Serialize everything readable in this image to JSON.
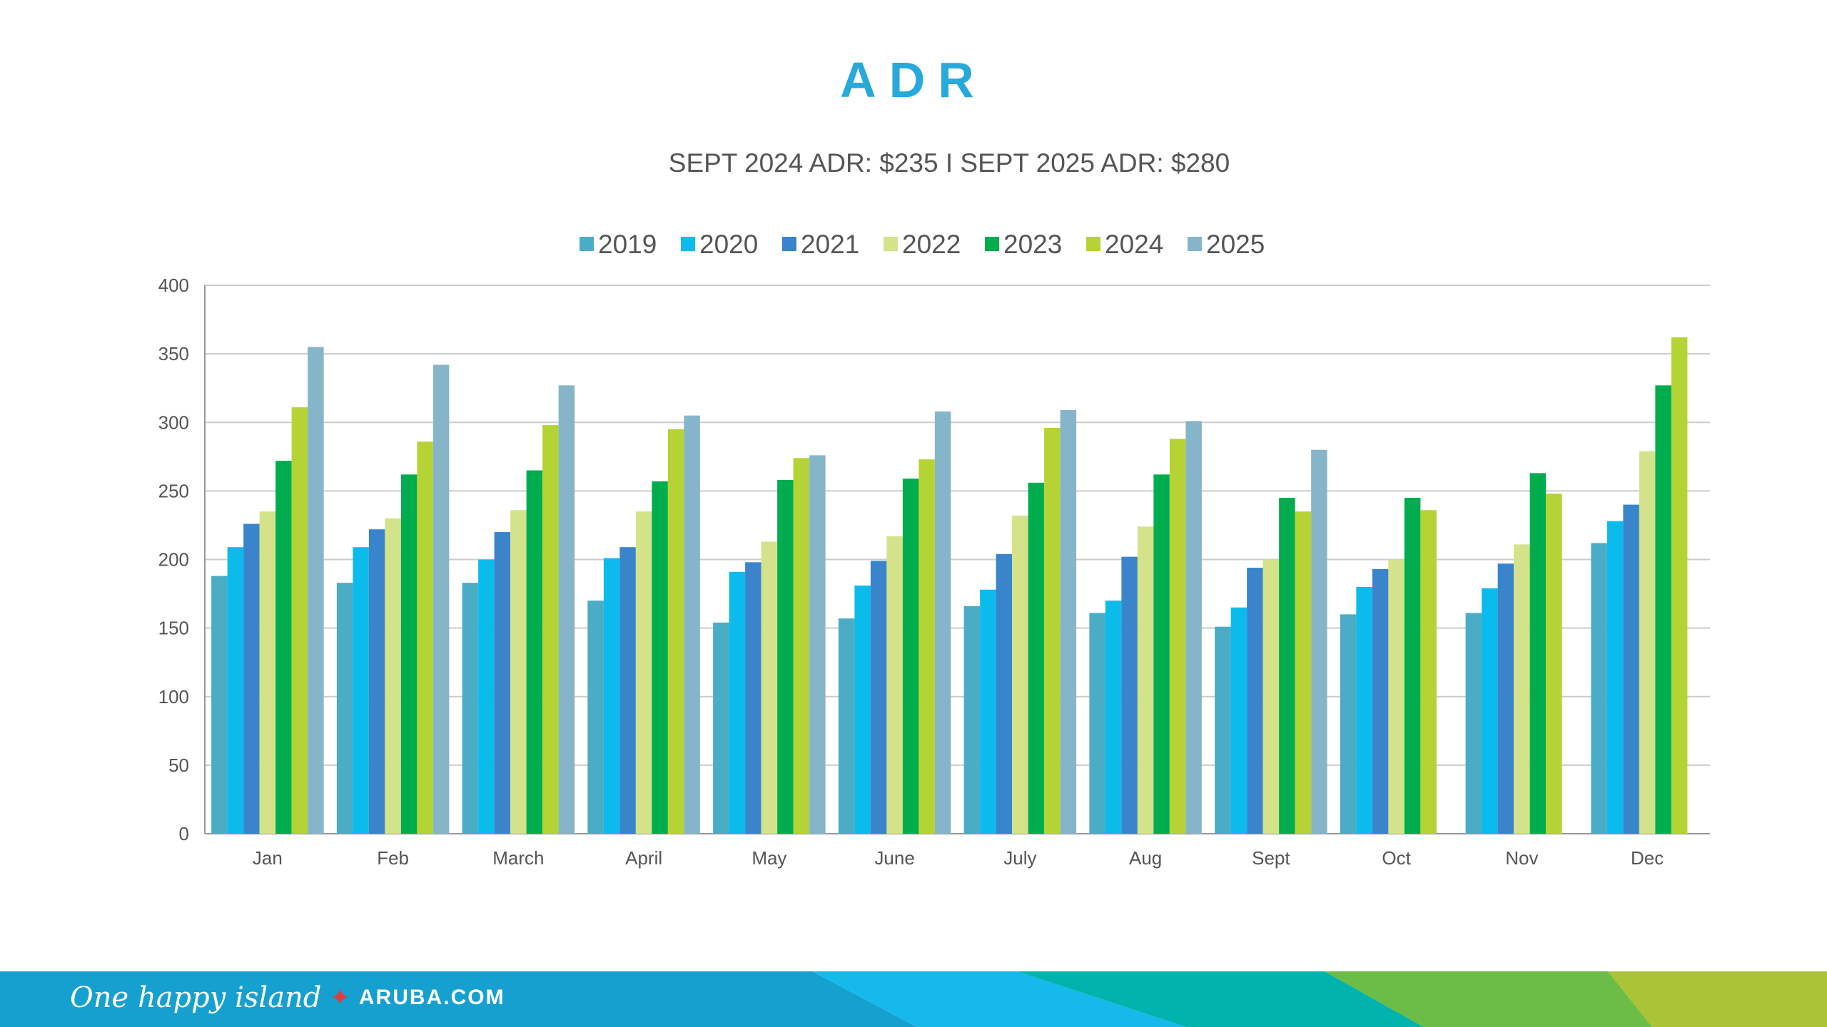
{
  "chart_data": {
    "type": "bar",
    "title": "ADR",
    "subtitle": "SEPT 2024 ADR: $235 I SEPT 2025 ADR: $280",
    "xlabel": "",
    "ylabel": "",
    "ylim": [
      0,
      400
    ],
    "yticks": [
      0,
      50,
      100,
      150,
      200,
      250,
      300,
      350,
      400
    ],
    "grid": true,
    "legend_position": "top",
    "categories": [
      "Jan",
      "Feb",
      "March",
      "April",
      "May",
      "June",
      "July",
      "Aug",
      "Sept",
      "Oct",
      "Nov",
      "Dec"
    ],
    "series": [
      {
        "name": "2019",
        "color": "#4bacc6",
        "values": [
          188,
          183,
          183,
          170,
          154,
          157,
          166,
          161,
          151,
          160,
          161,
          212
        ]
      },
      {
        "name": "2020",
        "color": "#0bbbeb",
        "values": [
          209,
          209,
          200,
          201,
          191,
          181,
          178,
          170,
          165,
          180,
          179,
          228
        ]
      },
      {
        "name": "2021",
        "color": "#3a84cc",
        "values": [
          226,
          222,
          220,
          209,
          198,
          199,
          204,
          202,
          194,
          193,
          197,
          240
        ]
      },
      {
        "name": "2022",
        "color": "#d4e28a",
        "values": [
          235,
          230,
          236,
          235,
          213,
          217,
          232,
          224,
          200,
          200,
          211,
          279
        ]
      },
      {
        "name": "2023",
        "color": "#00ad4e",
        "values": [
          272,
          262,
          265,
          257,
          258,
          259,
          256,
          262,
          245,
          245,
          263,
          327
        ]
      },
      {
        "name": "2024",
        "color": "#b5d334",
        "values": [
          311,
          286,
          298,
          295,
          274,
          273,
          296,
          288,
          235,
          236,
          248,
          362
        ]
      },
      {
        "name": "2025",
        "color": "#86b5ca",
        "values": [
          355,
          342,
          327,
          305,
          276,
          308,
          309,
          301,
          280,
          null,
          null,
          null
        ]
      }
    ]
  },
  "footer": {
    "tagline": "One happy island",
    "website": "ARUBA.COM",
    "colors": [
      "#16a0cf",
      "#16baea",
      "#00b4ad",
      "#6cbd47",
      "#abc337"
    ]
  }
}
